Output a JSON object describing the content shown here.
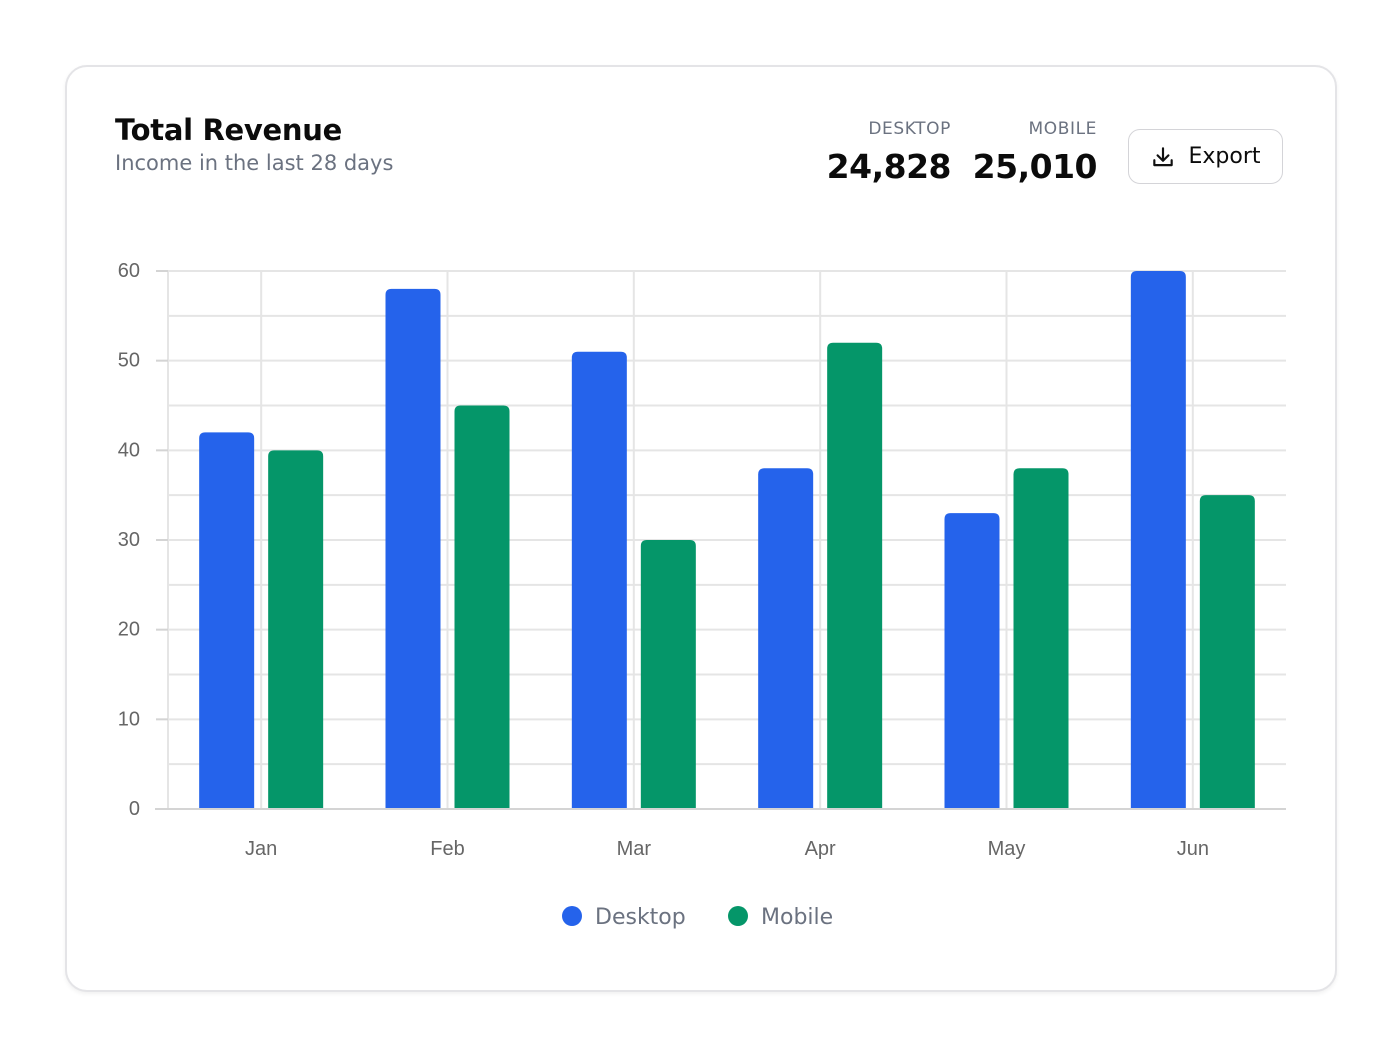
{
  "header": {
    "title": "Total Revenue",
    "subtitle": "Income in the last 28 days"
  },
  "stats": {
    "desktop": {
      "label": "DESKTOP",
      "value": "24,828"
    },
    "mobile": {
      "label": "MOBILE",
      "value": "25,010"
    }
  },
  "export_button": {
    "label": "Export",
    "icon": "download-icon"
  },
  "colors": {
    "desktop": "#2563eb",
    "mobile": "#059669",
    "grid": "#e5e5e5"
  },
  "chart_data": {
    "type": "bar",
    "categories": [
      "Jan",
      "Feb",
      "Mar",
      "Apr",
      "May",
      "Jun"
    ],
    "series": [
      {
        "name": "Desktop",
        "values": [
          42,
          58,
          51,
          38,
          33,
          60
        ]
      },
      {
        "name": "Mobile",
        "values": [
          40,
          45,
          30,
          52,
          38,
          35
        ]
      }
    ],
    "ylim": [
      0,
      60
    ],
    "yticks": [
      0,
      10,
      20,
      30,
      40,
      50,
      60
    ],
    "grid": true,
    "legend": "bottom-center"
  }
}
